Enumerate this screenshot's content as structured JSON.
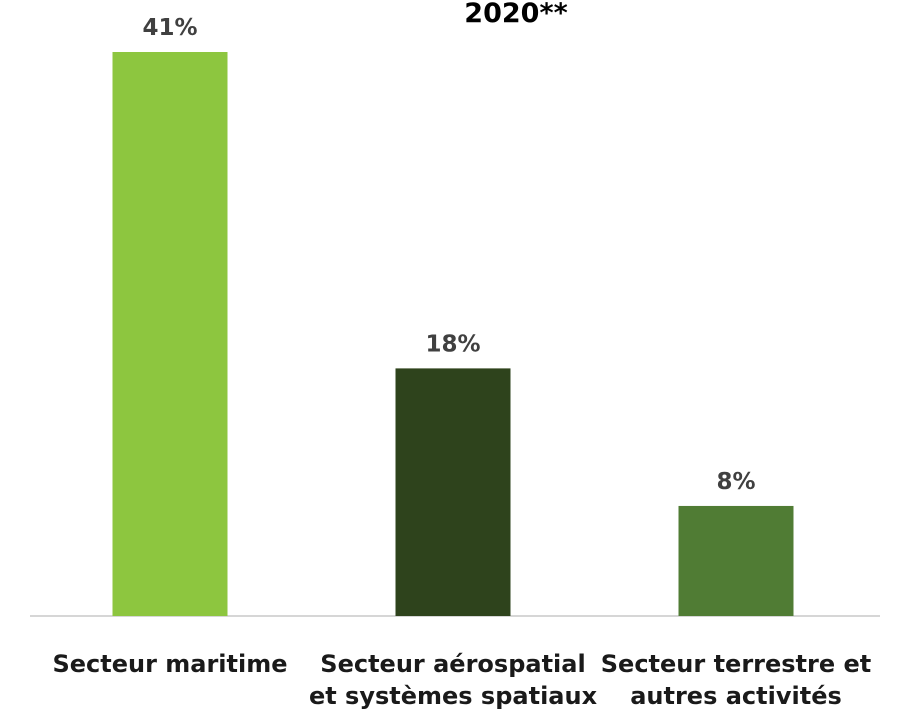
{
  "chart_data": {
    "type": "bar",
    "title": "2020**",
    "categories": [
      "Secteur maritime",
      "Secteur aérospatial et systèmes spatiaux",
      "Secteur terrestre et autres activités"
    ],
    "values": [
      41,
      18,
      8
    ],
    "value_labels": [
      "41%",
      "18%",
      "8%"
    ],
    "colors": [
      "#8dc63f",
      "#2e431c",
      "#507c34"
    ]
  }
}
